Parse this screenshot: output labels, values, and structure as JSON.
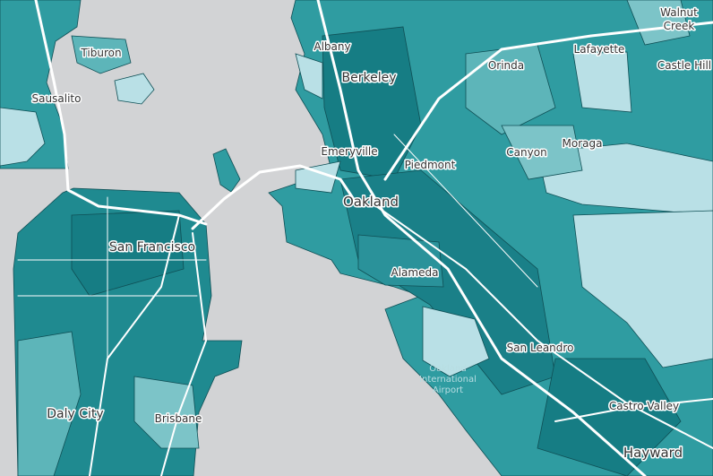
{
  "map": {
    "places": [
      {
        "lines": [
          "Tiburon"
        ]
      },
      {
        "lines": [
          "Sausalito"
        ]
      },
      {
        "lines": [
          "Albany"
        ]
      },
      {
        "lines": [
          "Berkeley"
        ]
      },
      {
        "lines": [
          "Orinda"
        ]
      },
      {
        "lines": [
          "Lafayette"
        ]
      },
      {
        "lines": [
          "Walnut",
          "Creek"
        ]
      },
      {
        "lines": [
          "Castle Hill"
        ]
      },
      {
        "lines": [
          "Emeryville"
        ]
      },
      {
        "lines": [
          "Piedmont"
        ]
      },
      {
        "lines": [
          "Canyon"
        ]
      },
      {
        "lines": [
          "Moraga"
        ]
      },
      {
        "lines": [
          "Oakland"
        ]
      },
      {
        "lines": [
          "San Francisco"
        ]
      },
      {
        "lines": [
          "Alameda"
        ]
      },
      {
        "lines": [
          "Oakland",
          "International",
          "Airport"
        ]
      },
      {
        "lines": [
          "San Leandro"
        ]
      },
      {
        "lines": [
          "Daly City"
        ]
      },
      {
        "lines": [
          "Brisbane"
        ]
      },
      {
        "lines": [
          "Castro Valley"
        ]
      },
      {
        "lines": [
          "Hayward"
        ]
      }
    ]
  }
}
